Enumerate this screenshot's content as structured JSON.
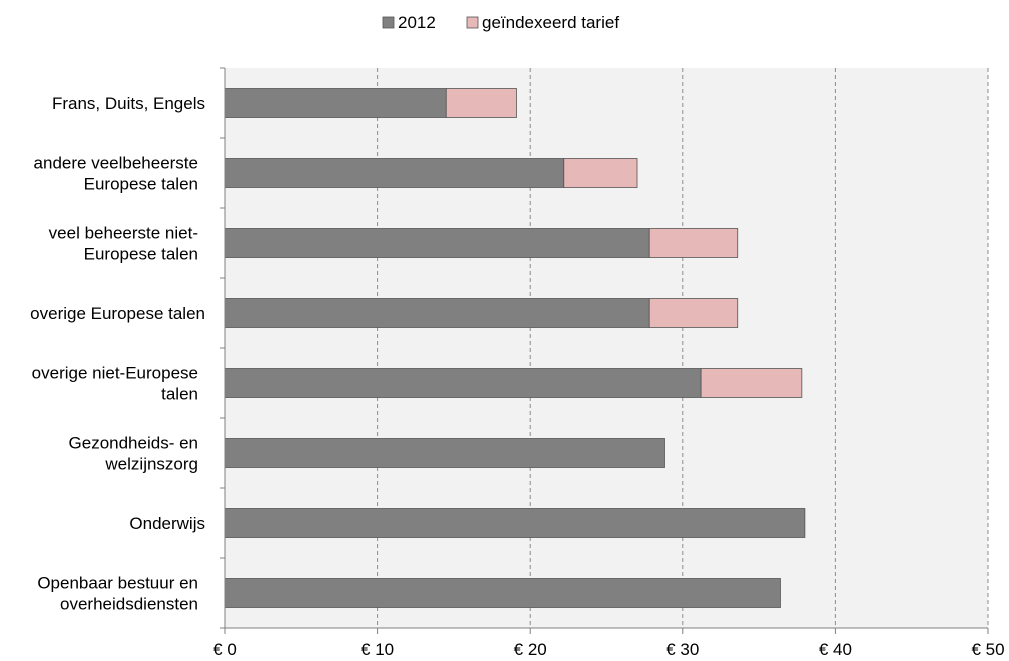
{
  "chart_data": {
    "type": "bar",
    "orientation": "horizontal",
    "stacked": true,
    "legend_position": "top",
    "grid": "vertical dashed",
    "categories": [
      [
        "Frans, Duits, Engels"
      ],
      [
        "andere veelbeheerste",
        "Europese talen"
      ],
      [
        "veel beheerste niet-",
        "Europese talen"
      ],
      [
        "overige Europese talen"
      ],
      [
        "overige niet-Europese",
        "talen"
      ],
      [
        "Gezondheids- en",
        "welzijnszorg"
      ],
      [
        "Onderwijs"
      ],
      [
        "Openbaar bestuur en",
        "overheidsdiensten"
      ]
    ],
    "series": [
      {
        "name": "2012",
        "color": "#808080",
        "values": [
          14.5,
          22.2,
          27.8,
          27.8,
          31.2,
          28.8,
          38.0,
          36.4
        ]
      },
      {
        "name": "geïndexeerd tarief",
        "color": "#e6b8b7",
        "values": [
          4.6,
          4.8,
          5.8,
          5.8,
          6.6,
          0,
          0,
          0
        ]
      }
    ],
    "xlim": [
      0,
      50
    ],
    "x_ticks": [
      0,
      10,
      20,
      30,
      40,
      50
    ],
    "x_tick_labels": [
      "€ 0",
      "€ 10",
      "€ 20",
      "€ 30",
      "€ 40",
      "€ 50"
    ],
    "title": "",
    "xlabel": "",
    "ylabel": ""
  }
}
